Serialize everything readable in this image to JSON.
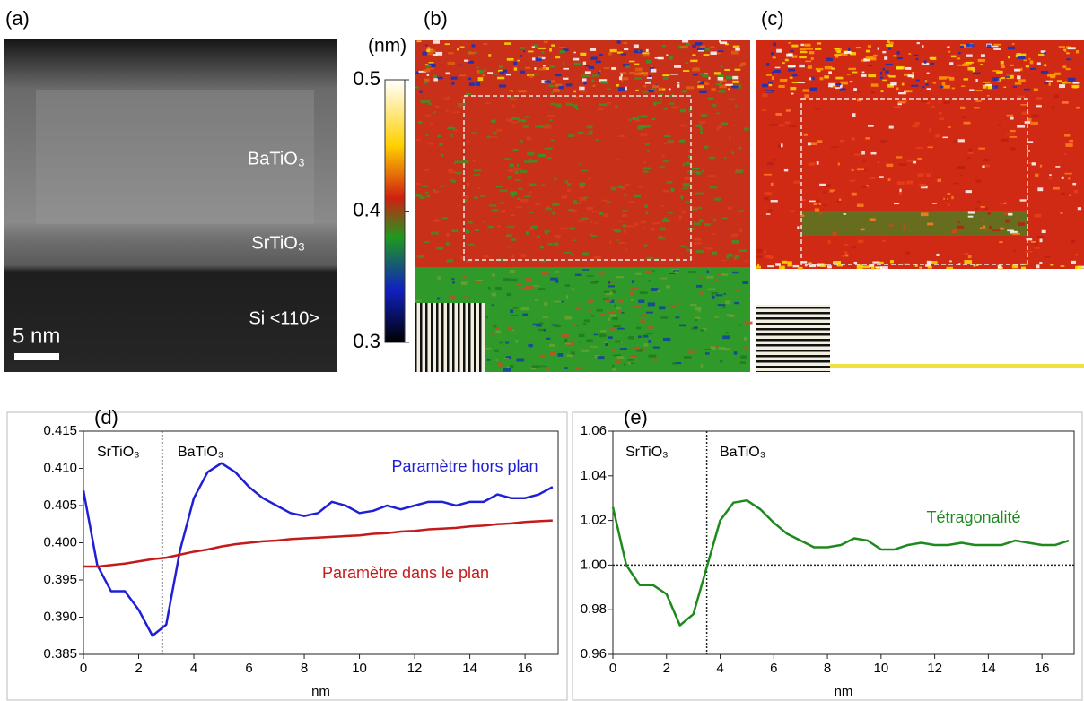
{
  "panels": {
    "a": {
      "label": "(a)",
      "annotations": [
        "BaTiO₃",
        "SrTiO₃",
        "Si <110>"
      ],
      "scale_bar": "5 nm"
    },
    "b": {
      "label": "(b)"
    },
    "c": {
      "label": "(c)"
    }
  },
  "colorbar": {
    "title": "(nm)",
    "lim": [
      0.3,
      0.5
    ],
    "ticks": [
      0.3,
      0.4,
      0.5
    ]
  },
  "chart_data": [
    {
      "type": "line",
      "panel_label": "(d)",
      "xlabel": "nm",
      "annotations": [
        "SrTiO₃",
        "BaTiO₃"
      ],
      "divider_x": 2.85,
      "x": [
        0,
        0.5,
        1,
        1.5,
        2,
        2.5,
        3,
        3.5,
        4,
        4.5,
        5,
        5.5,
        6,
        6.5,
        7,
        7.5,
        8,
        8.5,
        9,
        9.5,
        10,
        10.5,
        11,
        11.5,
        12,
        12.5,
        13,
        13.5,
        14,
        14.5,
        15,
        15.5,
        16,
        16.5,
        17
      ],
      "series": [
        {
          "name": "Paramètre hors plan",
          "color": "#1f1fd6",
          "values": [
            0.407,
            0.397,
            0.3935,
            0.3935,
            0.391,
            0.3875,
            0.389,
            0.399,
            0.406,
            0.4095,
            0.4107,
            0.4095,
            0.4075,
            0.406,
            0.405,
            0.404,
            0.4036,
            0.404,
            0.4055,
            0.405,
            0.404,
            0.4043,
            0.405,
            0.4045,
            0.405,
            0.4055,
            0.4055,
            0.405,
            0.4055,
            0.4055,
            0.4065,
            0.406,
            0.406,
            0.4065,
            0.4075
          ]
        },
        {
          "name": "Paramètre dans le plan",
          "color": "#c41a1a",
          "values": [
            0.3968,
            0.3968,
            0.397,
            0.3972,
            0.3975,
            0.3978,
            0.398,
            0.3984,
            0.3988,
            0.3991,
            0.3995,
            0.3998,
            0.4,
            0.4002,
            0.4003,
            0.4005,
            0.4006,
            0.4007,
            0.4008,
            0.4009,
            0.401,
            0.4012,
            0.4013,
            0.4015,
            0.4016,
            0.4018,
            0.4019,
            0.402,
            0.4022,
            0.4023,
            0.4025,
            0.4026,
            0.4028,
            0.4029,
            0.403
          ]
        }
      ],
      "xlim": [
        0,
        17.2
      ],
      "xticks": [
        0,
        2,
        4,
        6,
        8,
        10,
        12,
        14,
        16
      ],
      "ylim": [
        0.385,
        0.415
      ],
      "yticks": [
        0.385,
        {
          "value": 0.39,
          "label": "0.390"
        },
        0.395,
        {
          "value": 0.4,
          "label": "0.400"
        },
        0.405,
        {
          "value": 0.41,
          "label": "0.410"
        },
        0.415
      ]
    },
    {
      "type": "line",
      "panel_label": "(e)",
      "xlabel": "nm",
      "annotations": [
        "SrTiO₃",
        "BaTiO₃"
      ],
      "divider_x": 3.5,
      "ref_y": 1,
      "x": [
        0,
        0.5,
        1,
        1.5,
        2,
        2.5,
        3,
        3.5,
        4,
        4.5,
        5,
        5.5,
        6,
        6.5,
        7,
        7.5,
        8,
        8.5,
        9,
        9.5,
        10,
        10.5,
        11,
        11.5,
        12,
        12.5,
        13,
        13.5,
        14,
        14.5,
        15,
        15.5,
        16,
        16.5,
        17
      ],
      "series": [
        {
          "name": "Tétragonalité",
          "color": "#1e8a1e",
          "values": [
            1.026,
            1.0,
            0.991,
            0.991,
            0.987,
            0.973,
            0.978,
            0.999,
            1.02,
            1.028,
            1.029,
            1.025,
            1.019,
            1.014,
            1.011,
            1.008,
            1.008,
            1.009,
            1.012,
            1.011,
            1.007,
            1.007,
            1.009,
            1.01,
            1.009,
            1.009,
            1.01,
            1.009,
            1.009,
            1.009,
            1.011,
            1.01,
            1.009,
            1.009,
            1.011
          ]
        }
      ],
      "xlim": [
        0,
        17.2
      ],
      "xticks": [
        0,
        2,
        4,
        6,
        8,
        10,
        12,
        14,
        16
      ],
      "ylim": [
        0.96,
        1.06
      ],
      "yticks": [
        0.96,
        0.98,
        {
          "value": 1,
          "label": "1.00"
        },
        1.02,
        1.04,
        1.06
      ]
    }
  ]
}
